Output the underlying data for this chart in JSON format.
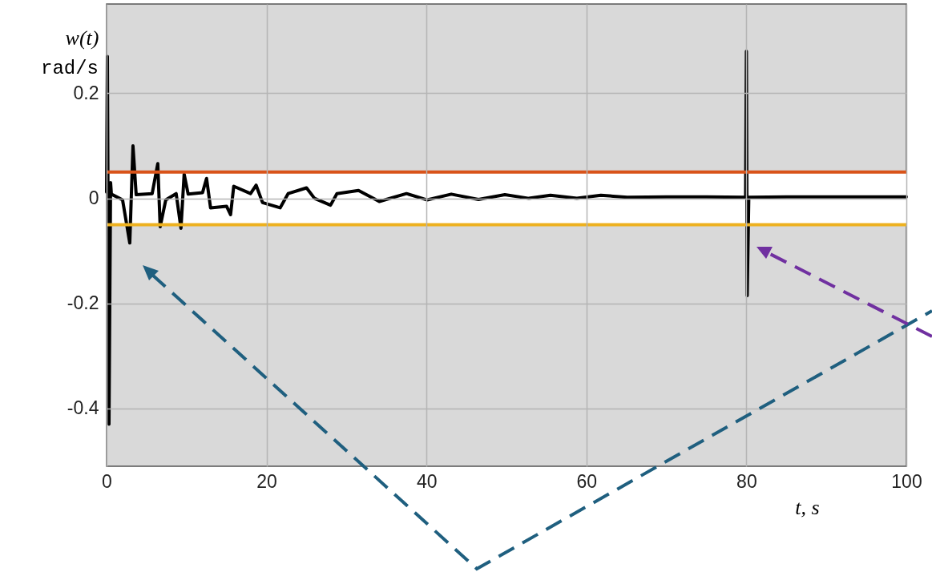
{
  "chart_data": {
    "type": "line",
    "xlabel": "t, s",
    "ylabel": "w(t)",
    "annotations": [
      "rad/s"
    ],
    "x": [
      0,
      0.1,
      0.3,
      0.5,
      0.6,
      2.0,
      2.9,
      3.3,
      3.7,
      5.7,
      6.4,
      6.7,
      7.4,
      8.7,
      9.3,
      9.7,
      10.2,
      12.0,
      12.5,
      13.0,
      15.0,
      15.5,
      15.9,
      18.0,
      18.7,
      19.5,
      21.7,
      22.7,
      25.0,
      26.0,
      28.0,
      28.8,
      31.5,
      34.1,
      37.5,
      40.1,
      43.1,
      46.5,
      49.8,
      52.8,
      55.5,
      58.8,
      61.8,
      65.1,
      70,
      75,
      79.9,
      80.0,
      80.1,
      80.3,
      85,
      90,
      95,
      100
    ],
    "series": [
      {
        "color": "#000000",
        "values": [
          0.012,
          0.27,
          -0.43,
          0.03,
          0.008,
          -0.003,
          -0.085,
          0.1,
          0.007,
          0.009,
          0.066,
          -0.054,
          -0.003,
          0.009,
          -0.057,
          0.046,
          0.008,
          0.011,
          0.038,
          -0.018,
          -0.015,
          -0.031,
          0.023,
          0.009,
          0.025,
          -0.008,
          -0.018,
          0.009,
          0.02,
          0.0,
          -0.013,
          0.009,
          0.015,
          -0.006,
          0.009,
          -0.003,
          0.008,
          -0.002,
          0.007,
          0.0,
          0.006,
          0.0,
          0.006,
          0.002,
          0.003,
          0.003,
          0.002,
          0.28,
          -0.185,
          0.002,
          0.003,
          0.003,
          0.003,
          0.003
        ]
      }
    ],
    "xlim": [
      0,
      100
    ],
    "xticks": [
      0,
      20,
      40,
      60,
      80,
      100
    ],
    "ylim": [
      -0.51,
      0.37
    ],
    "yticks": [
      {
        "value": 0.2,
        "label": "0.2"
      },
      0,
      {
        "value": -0.2,
        "label": "-0.2"
      },
      {
        "value": -0.4,
        "label": "-0.4"
      }
    ],
    "grid": true,
    "line_style": "solid",
    "bands": [
      {
        "axis": "y",
        "from": -0.05,
        "to": 0.05,
        "color": "#ffffff"
      }
    ],
    "ref_lines": [
      {
        "axis": "y",
        "value": 0.05,
        "color": "#d95319"
      },
      {
        "axis": "y",
        "value": -0.05,
        "color": "#edb120"
      }
    ]
  }
}
